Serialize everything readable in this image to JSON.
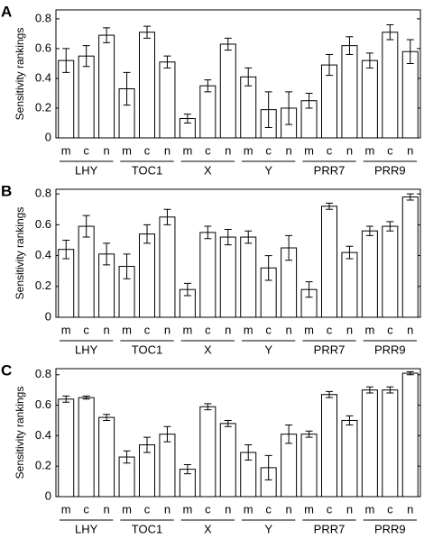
{
  "chart_data": [
    {
      "type": "bar",
      "panel": "A",
      "ylabel": "Sensitivity rankings",
      "categories": [
        "m",
        "c",
        "n",
        "m",
        "c",
        "n",
        "m",
        "c",
        "n",
        "m",
        "c",
        "n",
        "m",
        "c",
        "n",
        "m",
        "c",
        "n"
      ],
      "groups": [
        "LHY",
        "TOC1",
        "X",
        "Y",
        "PRR7",
        "PRR9"
      ],
      "values": [
        0.52,
        0.55,
        0.69,
        0.33,
        0.71,
        0.51,
        0.13,
        0.35,
        0.63,
        0.41,
        0.19,
        0.2,
        0.25,
        0.49,
        0.62,
        0.52,
        0.71,
        0.58
      ],
      "errors": [
        0.08,
        0.07,
        0.05,
        0.11,
        0.04,
        0.04,
        0.03,
        0.04,
        0.04,
        0.06,
        0.12,
        0.11,
        0.05,
        0.07,
        0.06,
        0.05,
        0.05,
        0.08
      ],
      "color": "#ffffff",
      "ylim": [
        0,
        0.86
      ],
      "yticks": [
        0,
        0.2,
        0.4,
        0.6,
        0.8
      ]
    },
    {
      "type": "bar",
      "panel": "B",
      "ylabel": "Sensitivity rankings",
      "categories": [
        "m",
        "c",
        "n",
        "m",
        "c",
        "n",
        "m",
        "c",
        "n",
        "m",
        "c",
        "n",
        "m",
        "c",
        "n",
        "m",
        "c",
        "n"
      ],
      "groups": [
        "LHY",
        "TOC1",
        "X",
        "Y",
        "PRR7",
        "PRR9"
      ],
      "values": [
        0.44,
        0.59,
        0.41,
        0.33,
        0.54,
        0.65,
        0.18,
        0.55,
        0.52,
        0.52,
        0.32,
        0.45,
        0.18,
        0.72,
        0.42,
        0.56,
        0.59,
        0.78
      ],
      "errors": [
        0.06,
        0.07,
        0.07,
        0.08,
        0.06,
        0.05,
        0.04,
        0.04,
        0.05,
        0.04,
        0.08,
        0.08,
        0.05,
        0.02,
        0.04,
        0.03,
        0.03,
        0.02
      ],
      "color": "#ffffff",
      "ylim": [
        0,
        0.83
      ],
      "yticks": [
        0,
        0.2,
        0.4,
        0.6,
        0.8
      ]
    },
    {
      "type": "bar",
      "panel": "C",
      "ylabel": "Sensitivity rankings",
      "categories": [
        "m",
        "c",
        "n",
        "m",
        "c",
        "n",
        "m",
        "c",
        "n",
        "m",
        "c",
        "n",
        "m",
        "c",
        "n",
        "m",
        "c",
        "n"
      ],
      "groups": [
        "LHY",
        "TOC1",
        "X",
        "Y",
        "PRR7",
        "PRR9"
      ],
      "values": [
        0.64,
        0.65,
        0.52,
        0.26,
        0.34,
        0.41,
        0.18,
        0.59,
        0.48,
        0.29,
        0.19,
        0.41,
        0.41,
        0.67,
        0.5,
        0.7,
        0.7,
        0.81
      ],
      "errors": [
        0.02,
        0.01,
        0.02,
        0.04,
        0.05,
        0.05,
        0.03,
        0.02,
        0.02,
        0.05,
        0.08,
        0.06,
        0.02,
        0.02,
        0.03,
        0.02,
        0.02,
        0.01
      ],
      "color": "#ffffff",
      "ylim": [
        0,
        0.84
      ],
      "yticks": [
        0,
        0.2,
        0.4,
        0.6,
        0.8
      ]
    }
  ]
}
